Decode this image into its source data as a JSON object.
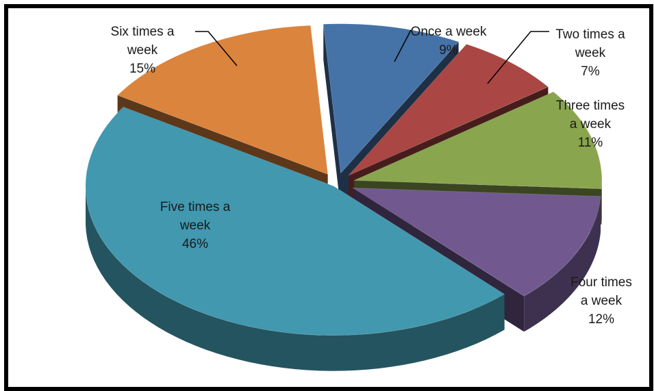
{
  "chart_data": {
    "type": "pie",
    "style": "3d-exploded",
    "slices": [
      {
        "label_lines": [
          "Once a week"
        ],
        "pct_label": "9%",
        "value": 9,
        "color": "#4572A7"
      },
      {
        "label_lines": [
          "Two times a",
          "week"
        ],
        "pct_label": "7%",
        "value": 7,
        "color": "#AA4643"
      },
      {
        "label_lines": [
          "Three times",
          "a week"
        ],
        "pct_label": "11%",
        "value": 11,
        "color": "#89A54E"
      },
      {
        "label_lines": [
          "Four times",
          "a week"
        ],
        "pct_label": "12%",
        "value": 12,
        "color": "#71588F"
      },
      {
        "label_lines": [
          "Five times a",
          "week"
        ],
        "pct_label": "46%",
        "value": 46,
        "color": "#4198AF"
      },
      {
        "label_lines": [
          "Six times a",
          "week"
        ],
        "pct_label": "15%",
        "value": 15,
        "color": "#DB843D"
      }
    ]
  }
}
